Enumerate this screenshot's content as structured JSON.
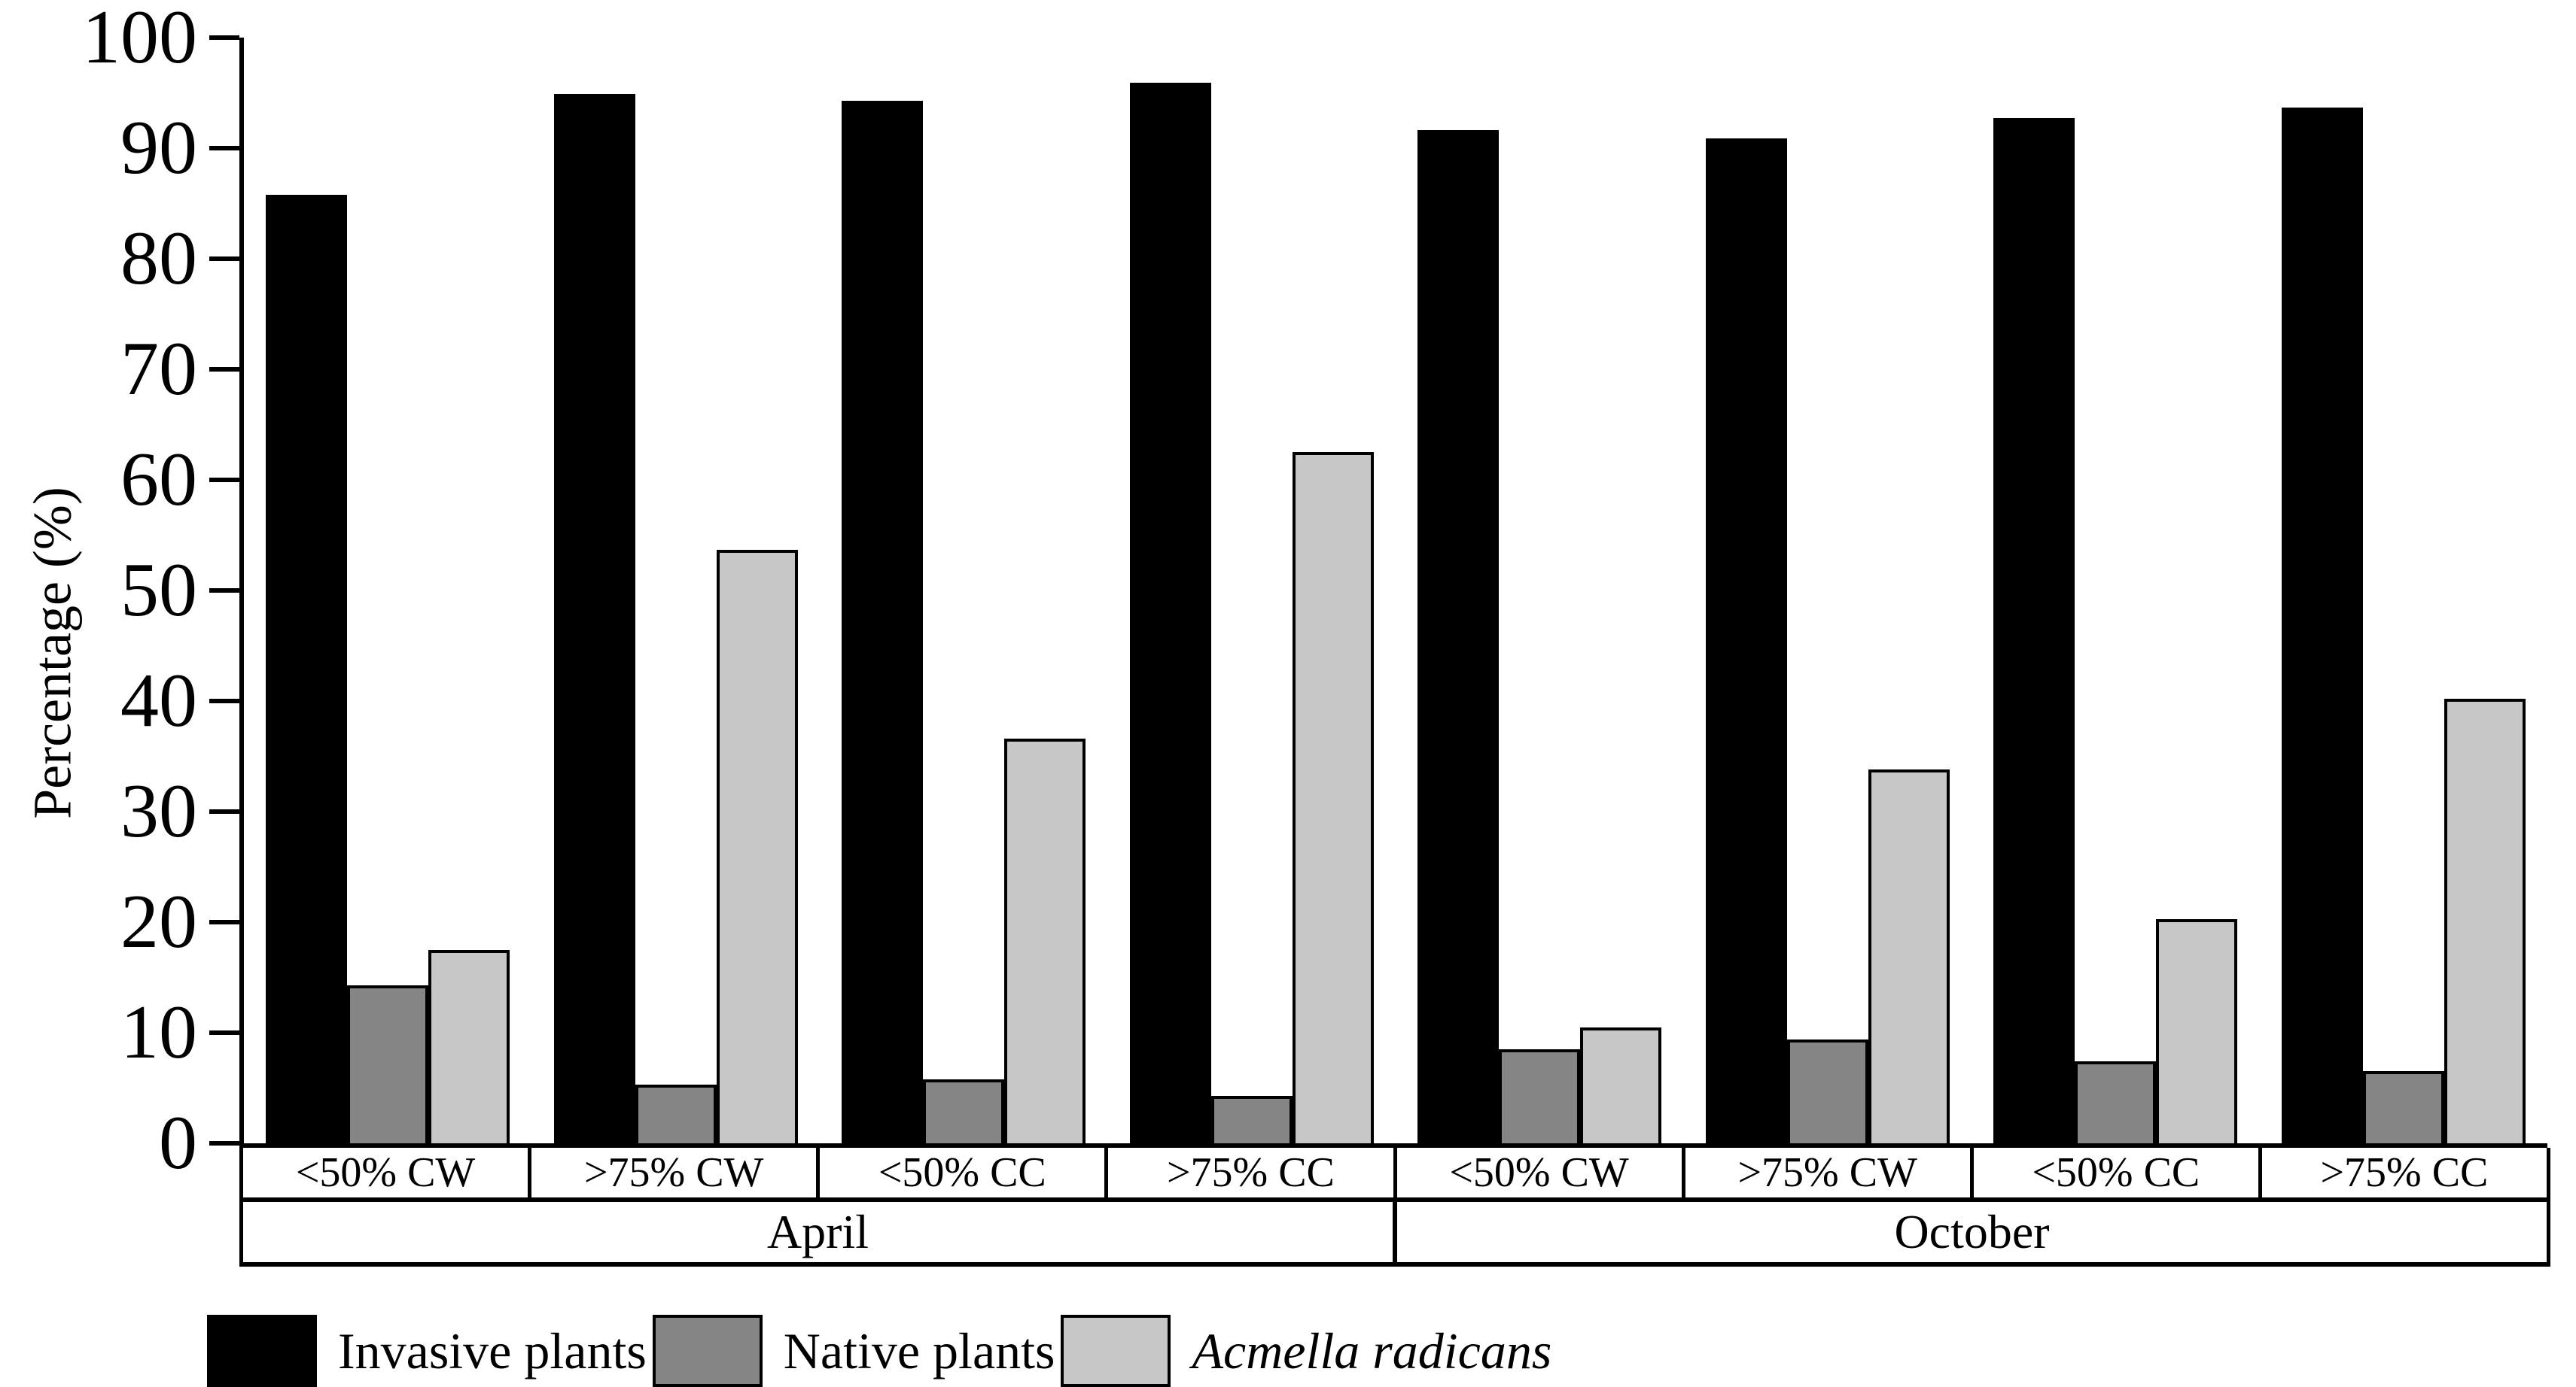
{
  "y_axis": {
    "title": "Percentage (%)",
    "ticks": [
      0,
      10,
      20,
      30,
      40,
      50,
      60,
      70,
      80,
      90,
      100
    ]
  },
  "x_axis": {
    "months": [
      {
        "label": "April",
        "categories": [
          "<50% CW",
          ">75% CW",
          "<50% CC",
          ">75% CC"
        ]
      },
      {
        "label": "October",
        "categories": [
          "<50% CW",
          ">75% CW",
          "<50% CC",
          ">75% CC"
        ]
      }
    ]
  },
  "legend": {
    "items": [
      {
        "label": "Invasive plants",
        "color": "#000000",
        "italic": false
      },
      {
        "label": "Native plants",
        "color": "#858585",
        "italic": false
      },
      {
        "label": "Acmella radicans",
        "color": "#c7c7c7",
        "italic": true
      }
    ]
  },
  "chart_data": {
    "type": "bar",
    "title": "",
    "xlabel": "",
    "ylabel": "Percentage (%)",
    "ylim": [
      0,
      100
    ],
    "ytick_step": 10,
    "grid": false,
    "legend_position": "bottom-left",
    "bar_outline_color": "#000000",
    "categories": [
      "April <50% CW",
      "April >75% CW",
      "April <50% CC",
      "April >75% CC",
      "October <50% CW",
      "October >75% CW",
      "October <50% CC",
      "October >75% CC"
    ],
    "series": [
      {
        "name": "Invasive plants",
        "color": "#000000",
        "values": [
          85.8,
          94.9,
          94.3,
          95.9,
          91.6,
          90.9,
          92.7,
          93.7
        ]
      },
      {
        "name": "Native plants",
        "color": "#858585",
        "values": [
          14.3,
          5.3,
          5.8,
          4.3,
          8.5,
          9.4,
          7.4,
          6.5
        ]
      },
      {
        "name": "Acmella radicans",
        "color": "#c7c7c7",
        "values": [
          17.5,
          53.7,
          36.6,
          62.5,
          10.5,
          33.8,
          20.3,
          40.2
        ]
      }
    ]
  }
}
